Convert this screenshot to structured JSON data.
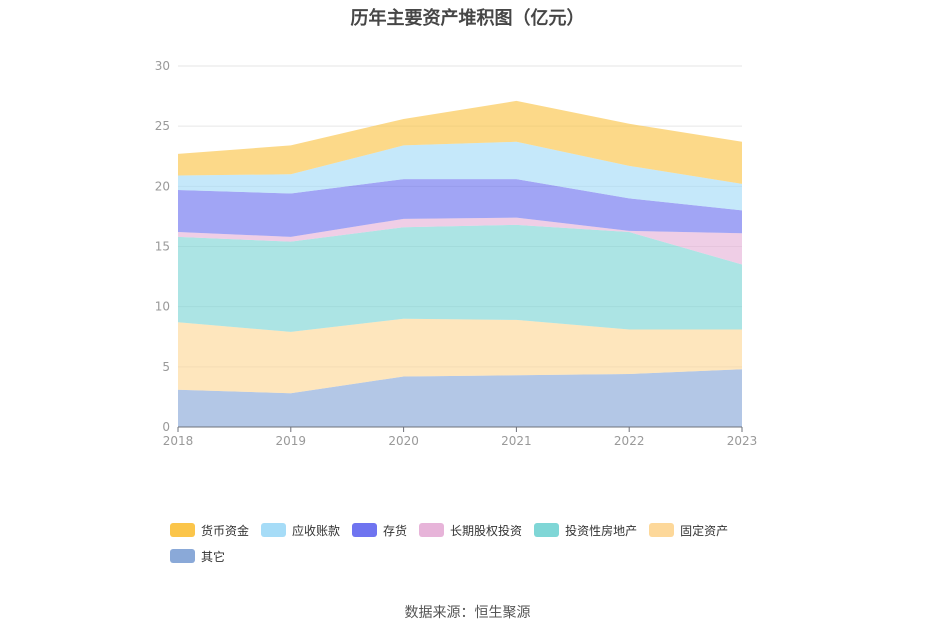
{
  "source_note": "数据来源：恒生聚源",
  "chart_data": {
    "type": "area",
    "stacked": true,
    "title": "历年主要资产堆积图（亿元）",
    "xlabel": "",
    "ylabel": "",
    "x": [
      "2018",
      "2019",
      "2020",
      "2021",
      "2022",
      "2023"
    ],
    "ylim": [
      0,
      30
    ],
    "yticks": [
      "0",
      "5",
      "10",
      "15",
      "20",
      "25",
      "30"
    ],
    "grid": true,
    "legend_position": "bottom",
    "series": [
      {
        "name": "其它",
        "color": "#8aa9d8",
        "values": [
          3.1,
          2.8,
          4.2,
          4.3,
          4.4,
          4.8
        ]
      },
      {
        "name": "固定资产",
        "color": "#fdd89a",
        "values": [
          5.6,
          5.1,
          4.8,
          4.6,
          3.7,
          3.3
        ]
      },
      {
        "name": "投资性房地产",
        "color": "#7fd6d6",
        "values": [
          7.1,
          7.5,
          7.6,
          7.9,
          8.1,
          5.4
        ]
      },
      {
        "name": "长期股权投资",
        "color": "#e7b4d9",
        "values": [
          0.4,
          0.4,
          0.7,
          0.6,
          0.1,
          2.6
        ]
      },
      {
        "name": "存货",
        "color": "#6f74f0",
        "values": [
          3.5,
          3.6,
          3.3,
          3.2,
          2.7,
          1.9
        ]
      },
      {
        "name": "应收账款",
        "color": "#a6dcf7",
        "values": [
          1.2,
          1.6,
          2.8,
          3.1,
          2.7,
          2.2
        ]
      },
      {
        "name": "货币资金",
        "color": "#fbc54a",
        "values": [
          1.8,
          2.4,
          2.2,
          3.4,
          3.5,
          3.5
        ]
      }
    ]
  }
}
